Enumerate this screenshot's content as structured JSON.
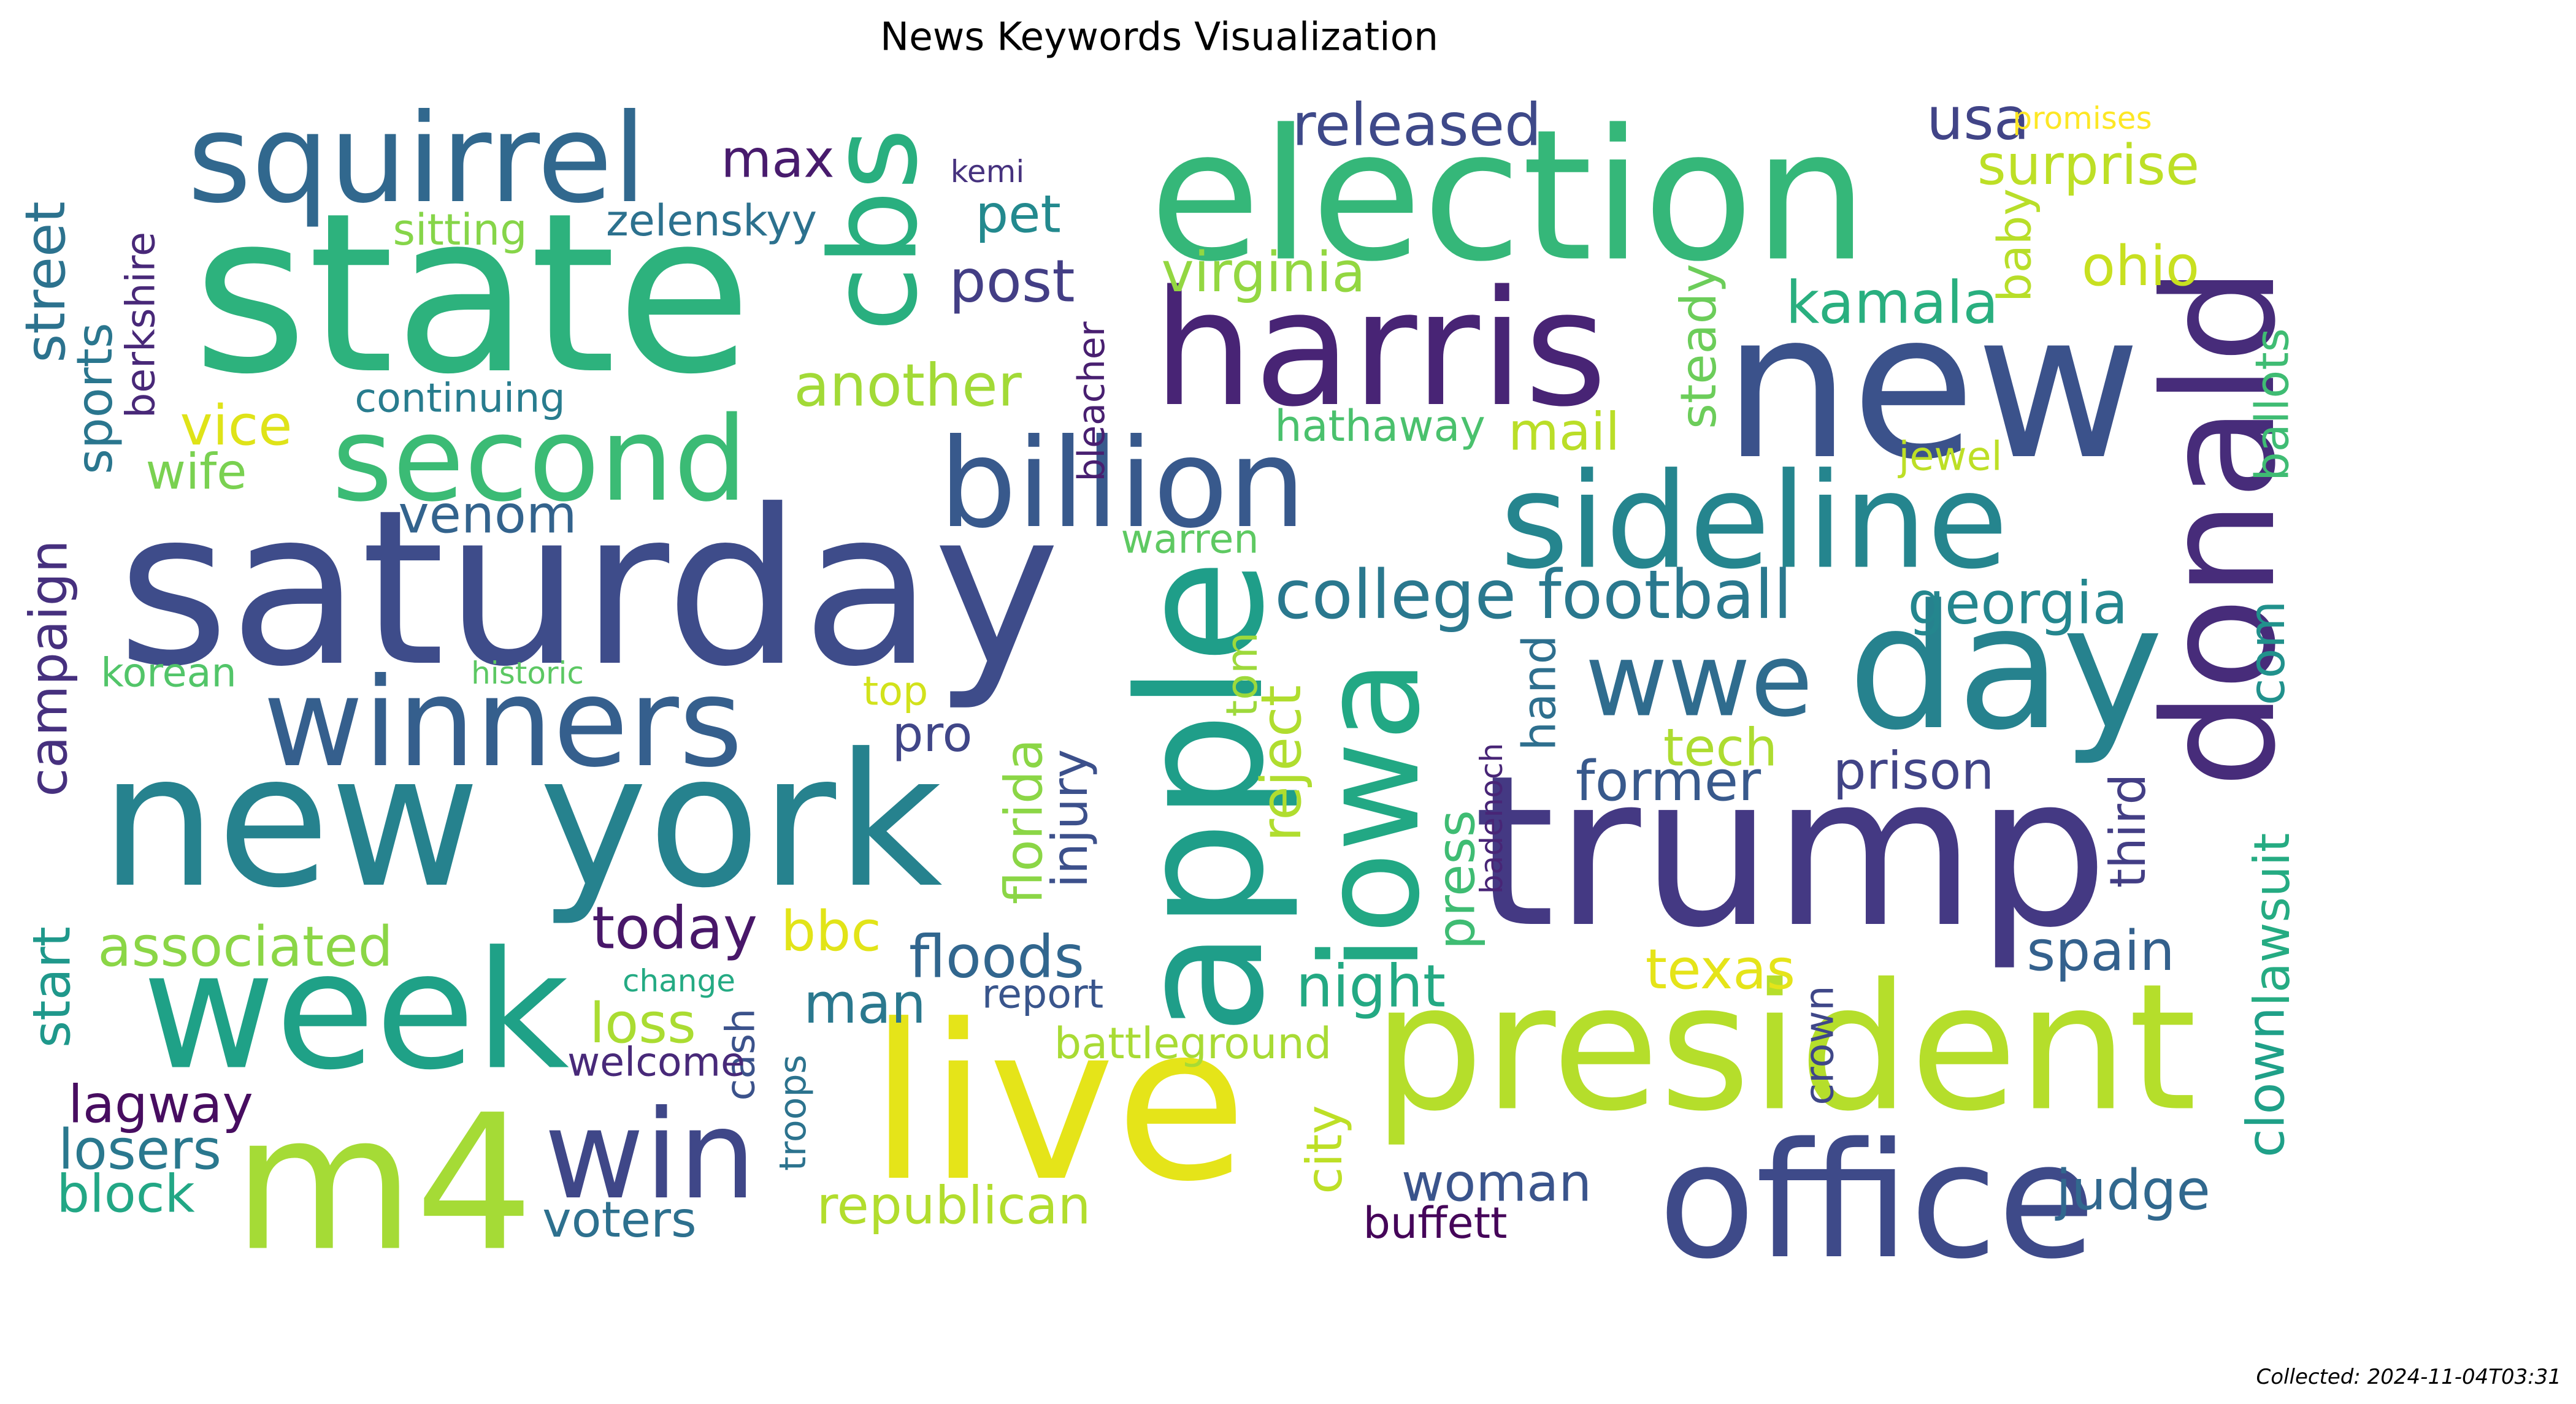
{
  "title": "News Keywords Visualization",
  "collected": "Collected: 2024-11-04T03:31",
  "words": [
    {
      "text": "state",
      "color": "#2db27d"
    },
    {
      "text": "saturday",
      "color": "#3e4c8a"
    },
    {
      "text": "election",
      "color": "#35b779"
    },
    {
      "text": "new",
      "color": "#3b528b"
    },
    {
      "text": "trump",
      "color": "#443983"
    },
    {
      "text": "live",
      "color": "#e5e419"
    },
    {
      "text": "president",
      "color": "#b5de2b"
    },
    {
      "text": "new york",
      "color": "#26828e"
    },
    {
      "text": "harris",
      "color": "#482475"
    },
    {
      "text": "apple",
      "color": "#1f9e89"
    },
    {
      "text": "office",
      "color": "#3e4a89"
    },
    {
      "text": "week",
      "color": "#1fa187"
    },
    {
      "text": "m4",
      "color": "#a5db36"
    },
    {
      "text": "day",
      "color": "#26828e"
    },
    {
      "text": "donald",
      "color": "#472c7a"
    },
    {
      "text": "iowa",
      "color": "#22a884"
    },
    {
      "text": "sideline",
      "color": "#25858e"
    },
    {
      "text": "billion",
      "color": "#38598c"
    },
    {
      "text": "squirrel",
      "color": "#31688e"
    },
    {
      "text": "winners",
      "color": "#355f8d"
    },
    {
      "text": "second",
      "color": "#3bbb75"
    },
    {
      "text": "win",
      "color": "#3f4788"
    },
    {
      "text": "cbs",
      "color": "#29af7f"
    },
    {
      "text": "wwe",
      "color": "#2f6c8e"
    },
    {
      "text": "college football",
      "color": "#2a788e"
    },
    {
      "text": "georgia",
      "color": "#24868e"
    },
    {
      "text": "kamala",
      "color": "#29af7f"
    },
    {
      "text": "released",
      "color": "#3e4989"
    },
    {
      "text": "usa",
      "color": "#414487"
    },
    {
      "text": "surprise",
      "color": "#bddf26"
    },
    {
      "text": "ohio",
      "color": "#c8e020"
    },
    {
      "text": "virginia",
      "color": "#93d741"
    },
    {
      "text": "post",
      "color": "#433e85"
    },
    {
      "text": "another",
      "color": "#a2da37"
    },
    {
      "text": "max",
      "color": "#481b6d"
    },
    {
      "text": "pet",
      "color": "#23898e"
    },
    {
      "text": "zelenskyy",
      "color": "#2c718e"
    },
    {
      "text": "sitting",
      "color": "#86d549"
    },
    {
      "text": "kemi",
      "color": "#46327e"
    },
    {
      "text": "promises",
      "color": "#fde725"
    },
    {
      "text": "continuing",
      "color": "#287c8e"
    },
    {
      "text": "vice",
      "color": "#dfe318"
    },
    {
      "text": "wife",
      "color": "#7ad151"
    },
    {
      "text": "venom",
      "color": "#33638d"
    },
    {
      "text": "sports",
      "color": "#2a768e"
    },
    {
      "text": "berkshire",
      "color": "#482878"
    },
    {
      "text": "street",
      "color": "#2c728e"
    },
    {
      "text": "hathaway",
      "color": "#4ac16d"
    },
    {
      "text": "mail",
      "color": "#bade28"
    },
    {
      "text": "steady",
      "color": "#6ccd5a"
    },
    {
      "text": "baby",
      "color": "#b8de29"
    },
    {
      "text": "jewel",
      "color": "#bddf26"
    },
    {
      "text": "ballots",
      "color": "#3fbc73"
    },
    {
      "text": "bleacher",
      "color": "#481f70"
    },
    {
      "text": "warren",
      "color": "#5ec962"
    },
    {
      "text": "campaign",
      "color": "#46307e"
    },
    {
      "text": "korean",
      "color": "#52c569"
    },
    {
      "text": "historic",
      "color": "#5cc863"
    },
    {
      "text": "top",
      "color": "#d2e21b"
    },
    {
      "text": "pro",
      "color": "#404688"
    },
    {
      "text": "tech",
      "color": "#addc30"
    },
    {
      "text": "former",
      "color": "#38598c"
    },
    {
      "text": "prison",
      "color": "#414487"
    },
    {
      "text": "com",
      "color": "#21918c"
    },
    {
      "text": "hand",
      "color": "#2e6f8e"
    },
    {
      "text": "badenoch",
      "color": "#482576"
    },
    {
      "text": "third",
      "color": "#433e85"
    },
    {
      "text": "florida",
      "color": "#8bd646"
    },
    {
      "text": "injury",
      "color": "#3c508b"
    },
    {
      "text": "tom",
      "color": "#9dd93b"
    },
    {
      "text": "reject",
      "color": "#b0dd2f"
    },
    {
      "text": "press",
      "color": "#3fbc73"
    },
    {
      "text": "lawsuit",
      "color": "#25ab82"
    },
    {
      "text": "today",
      "color": "#481769"
    },
    {
      "text": "bbc",
      "color": "#e2e418"
    },
    {
      "text": "associated",
      "color": "#8bd646"
    },
    {
      "text": "floods",
      "color": "#31668e"
    },
    {
      "text": "spain",
      "color": "#34618d"
    },
    {
      "text": "texas",
      "color": "#e5e419"
    },
    {
      "text": "night",
      "color": "#23a983"
    },
    {
      "text": "start",
      "color": "#1f988b"
    },
    {
      "text": "change",
      "color": "#24aa83"
    },
    {
      "text": "man",
      "color": "#2a788e"
    },
    {
      "text": "report",
      "color": "#39558c"
    },
    {
      "text": "loss",
      "color": "#aadc32"
    },
    {
      "text": "cash",
      "color": "#3b528b"
    },
    {
      "text": "battleground",
      "color": "#a8db34"
    },
    {
      "text": "city",
      "color": "#bddf26"
    },
    {
      "text": "clown",
      "color": "#1fa088"
    },
    {
      "text": "crown",
      "color": "#3f4788"
    },
    {
      "text": "welcome",
      "color": "#482979"
    },
    {
      "text": "lagway",
      "color": "#470d60"
    },
    {
      "text": "losers",
      "color": "#2a788e"
    },
    {
      "text": "block",
      "color": "#22a785"
    },
    {
      "text": "troops",
      "color": "#2c738e"
    },
    {
      "text": "woman",
      "color": "#3a548c"
    },
    {
      "text": "judge",
      "color": "#31688e"
    },
    {
      "text": "voters",
      "color": "#2d708e"
    },
    {
      "text": "republican",
      "color": "#b2dd2d"
    },
    {
      "text": "buffett",
      "color": "#450559"
    }
  ]
}
